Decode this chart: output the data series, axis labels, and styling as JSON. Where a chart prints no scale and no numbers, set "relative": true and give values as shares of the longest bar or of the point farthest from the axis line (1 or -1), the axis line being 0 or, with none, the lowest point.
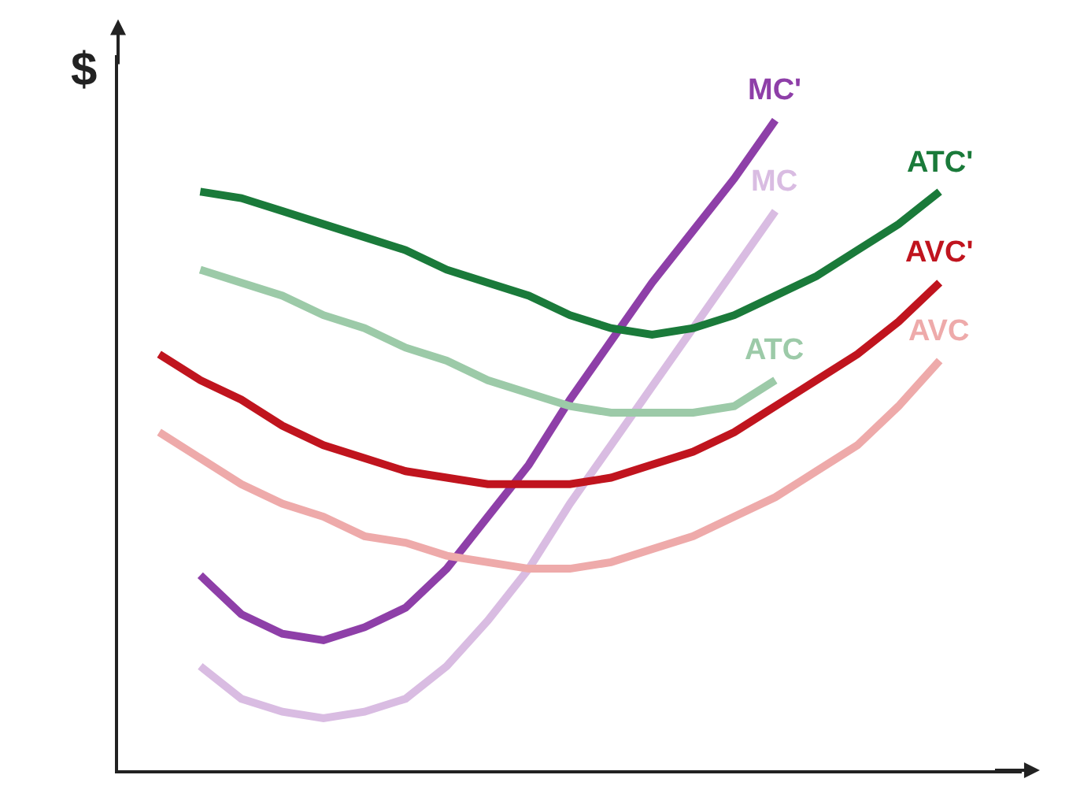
{
  "chart_data": {
    "type": "line",
    "relative": true,
    "ylabel": "$",
    "legend": false,
    "marker": "none",
    "line_style": "solid",
    "categories": [
      null,
      null,
      null,
      null,
      null,
      null,
      null,
      null,
      null,
      null,
      null,
      null,
      null,
      null,
      null,
      null,
      null,
      null,
      null,
      null,
      null
    ],
    "series": [
      {
        "name": "MC'",
        "color": "#8e3fa8",
        "values": [
          null,
          0.3,
          0.24,
          0.21,
          0.2,
          0.22,
          0.25,
          0.31,
          0.39,
          0.47,
          0.57,
          0.66,
          0.75,
          0.83,
          0.91,
          1.0,
          null,
          null,
          null,
          null,
          null
        ]
      },
      {
        "name": "MC",
        "color": "#d9bce2",
        "values": [
          null,
          0.16,
          0.11,
          0.09,
          0.08,
          0.09,
          0.11,
          0.16,
          0.23,
          0.31,
          0.41,
          0.5,
          0.59,
          0.68,
          0.77,
          0.86,
          null,
          null,
          null,
          null,
          null
        ]
      },
      {
        "name": "ATC'",
        "color": "#1a7a3a",
        "values": [
          null,
          0.89,
          0.88,
          0.86,
          0.84,
          0.82,
          0.8,
          0.77,
          0.75,
          0.73,
          0.7,
          0.68,
          0.67,
          0.68,
          0.7,
          0.73,
          0.76,
          0.8,
          0.84,
          0.89,
          null
        ]
      },
      {
        "name": "ATC",
        "color": "#9ccaa8",
        "values": [
          null,
          0.77,
          0.75,
          0.73,
          0.7,
          0.68,
          0.65,
          0.63,
          0.6,
          0.58,
          0.56,
          0.55,
          0.55,
          0.55,
          0.56,
          0.6,
          null,
          null,
          null,
          null,
          null
        ]
      },
      {
        "name": "AVC'",
        "color": "#c0141e",
        "values": [
          0.64,
          0.6,
          0.57,
          0.53,
          0.5,
          0.48,
          0.46,
          0.45,
          0.44,
          0.44,
          0.44,
          0.45,
          0.47,
          0.49,
          0.52,
          0.56,
          0.6,
          0.64,
          0.69,
          0.75,
          null
        ]
      },
      {
        "name": "AVC",
        "color": "#eeaaaa",
        "values": [
          0.52,
          0.48,
          0.44,
          0.41,
          0.39,
          0.36,
          0.35,
          0.33,
          0.32,
          0.31,
          0.31,
          0.32,
          0.34,
          0.36,
          0.39,
          0.42,
          0.46,
          0.5,
          0.56,
          0.63,
          null
        ]
      }
    ]
  }
}
